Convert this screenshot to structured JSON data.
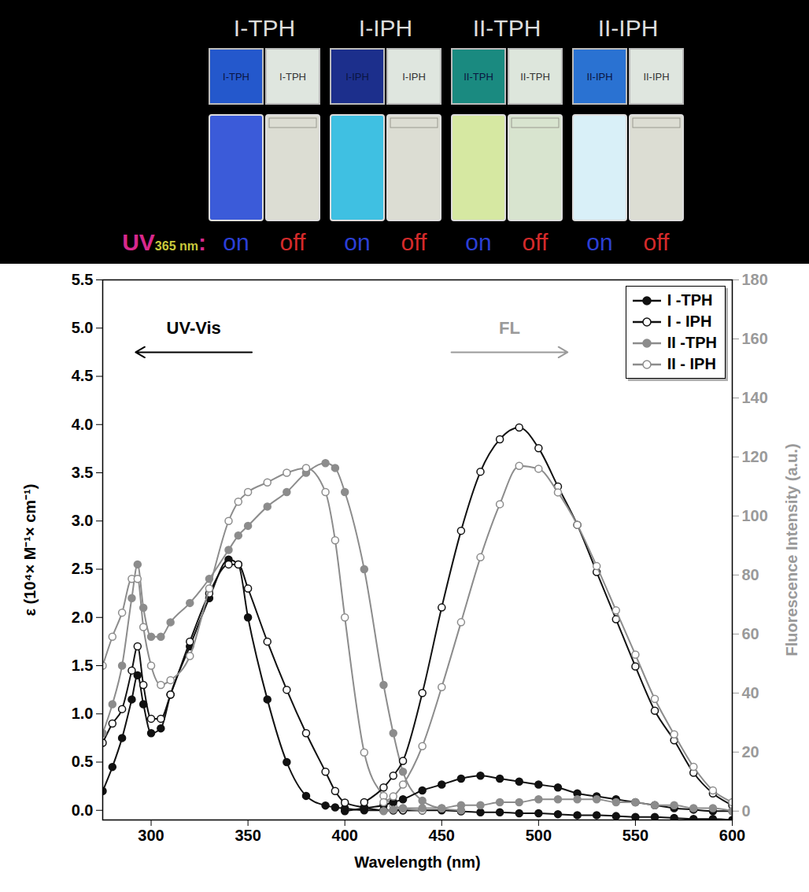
{
  "photo_panel": {
    "headers": [
      "I-TPH",
      "I-IPH",
      "II-TPH",
      "II-IPH"
    ],
    "header_color": "#dddddd",
    "film_labels": [
      "I-TPH",
      "I-TPH",
      "I-IPH",
      "I-IPH",
      "II-TPH",
      "II-TPH",
      "II-IPH",
      "II-IPH"
    ],
    "film_colors": [
      "#2458cc",
      "#dfe6df",
      "#1c2f8c",
      "#dfe6df",
      "#1a8a80",
      "#dde6dc",
      "#2a72d2",
      "#dfe6df"
    ],
    "vial_colors": [
      "#3b5bd9",
      "#dcddd3",
      "#3fc0e2",
      "#dcddd3",
      "#d6e8a2",
      "#d8e4cf",
      "#d9f0f8",
      "#dcddd3"
    ],
    "uv_label": "UV",
    "uv_subscript": "365 nm",
    "uv_colon": ":",
    "uv_color": "#d8288c",
    "subscript_color": "#c9c93c",
    "states": [
      {
        "text": "on",
        "color": "#2b3fd6"
      },
      {
        "text": "off",
        "color": "#d42a2a"
      }
    ]
  },
  "chart_data": {
    "type": "line",
    "x_label": "Wavelength (nm)",
    "y_label": "ε (10⁴× M⁻¹× cm⁻¹)",
    "y2_label": "Fluorescence Intensity (a.u.)",
    "x": [
      275,
      280,
      285,
      290,
      293,
      296,
      300,
      305,
      310,
      320,
      330,
      340,
      345,
      350,
      360,
      370,
      380,
      390,
      395,
      400,
      410,
      420,
      425,
      430,
      440,
      450,
      460,
      470,
      480,
      490,
      500,
      510,
      520,
      530,
      540,
      550,
      560,
      570,
      580,
      590,
      600
    ],
    "xlim": [
      275,
      600
    ],
    "xticks": [
      300,
      350,
      400,
      450,
      500,
      550,
      600
    ],
    "ylim": [
      -0.1,
      5.5
    ],
    "yticks": [
      {
        "value": 0,
        "label": "0.0"
      },
      0.5,
      {
        "value": 1,
        "label": "1.0"
      },
      1.5,
      {
        "value": 2,
        "label": "2.0"
      },
      2.5,
      {
        "value": 3,
        "label": "3.0"
      },
      3.5,
      {
        "value": 4,
        "label": "4.0"
      },
      4.5,
      {
        "value": 5,
        "label": "5.0"
      },
      5.5
    ],
    "y2lim": [
      -3,
      180
    ],
    "y2ticks": [
      0,
      20,
      40,
      60,
      80,
      100,
      120,
      140,
      160,
      180
    ],
    "y2_color": "#9a9a9a",
    "legend": "top-right",
    "annotations": [
      {
        "text": "UV-Vis",
        "x": 322,
        "y": 5.0,
        "arrow": "left",
        "color": "#000000"
      },
      {
        "text": "FL",
        "x": 485,
        "y": 5.0,
        "arrow": "right",
        "color": "#9a9a9a"
      }
    ],
    "series": [
      {
        "name": "I -TPH",
        "color": "#111111",
        "marker": "filled",
        "axis": "y",
        "values": [
          0.2,
          0.45,
          0.75,
          1.15,
          1.4,
          1.1,
          0.8,
          0.85,
          1.2,
          1.7,
          2.2,
          2.6,
          2.55,
          2.0,
          1.15,
          0.5,
          0.15,
          0.05,
          0.03,
          0.02,
          0.0,
          0.0,
          0.0,
          0.0,
          0.0,
          0.0,
          -0.01,
          -0.02,
          -0.02,
          -0.03,
          -0.03,
          -0.04,
          -0.05,
          -0.05,
          -0.06,
          -0.07,
          -0.07,
          -0.08,
          -0.09,
          -0.09,
          -0.1
        ]
      },
      {
        "name": "I - IPH",
        "color": "#111111",
        "marker": "open",
        "axis": "y",
        "values": [
          0.7,
          0.9,
          1.05,
          1.45,
          1.7,
          1.3,
          0.95,
          0.95,
          1.2,
          1.75,
          2.25,
          2.55,
          2.55,
          2.3,
          1.75,
          1.25,
          0.8,
          0.4,
          0.2,
          0.08,
          0.03,
          0.0,
          0.0,
          0.0,
          0.0,
          null,
          null,
          null,
          null,
          null,
          null,
          null,
          null,
          null,
          null,
          null,
          null,
          null,
          null,
          null,
          null
        ]
      },
      {
        "name": "II -TPH",
        "color": "#8c8c8c",
        "marker": "filled",
        "axis": "y",
        "values": [
          0.8,
          1.1,
          1.5,
          2.2,
          2.55,
          2.1,
          1.8,
          1.8,
          1.95,
          2.15,
          2.4,
          2.7,
          2.85,
          2.95,
          3.15,
          3.3,
          3.5,
          3.6,
          3.55,
          3.3,
          2.5,
          1.3,
          0.8,
          0.4,
          0.1,
          0.02,
          0.0,
          null,
          null,
          null,
          null,
          null,
          null,
          null,
          null,
          null,
          null,
          null,
          null,
          null,
          null
        ]
      },
      {
        "name": "II - IPH",
        "color": "#8c8c8c",
        "marker": "open",
        "axis": "y",
        "values": [
          1.5,
          1.8,
          2.05,
          2.4,
          2.4,
          1.9,
          1.5,
          1.3,
          1.35,
          1.6,
          2.3,
          3.0,
          3.2,
          3.3,
          3.4,
          3.5,
          3.55,
          3.3,
          2.8,
          2.0,
          0.6,
          0.15,
          0.05,
          0.02,
          0.0,
          null,
          null,
          null,
          null,
          null,
          null,
          null,
          null,
          null,
          null,
          null,
          null,
          null,
          null,
          null,
          null
        ]
      },
      {
        "name": "I -TPH",
        "color": "#111111",
        "marker": "filled",
        "axis": "y2",
        "values": [
          null,
          null,
          null,
          null,
          null,
          null,
          null,
          null,
          null,
          null,
          null,
          null,
          null,
          null,
          null,
          null,
          null,
          null,
          null,
          0,
          1,
          2,
          3,
          4,
          7,
          9,
          11,
          12,
          11,
          10,
          9,
          8,
          6,
          5,
          4,
          3,
          2,
          1,
          0.5,
          0,
          0
        ]
      },
      {
        "name": "I - IPH",
        "color": "#111111",
        "marker": "open",
        "axis": "y2",
        "values": [
          null,
          null,
          null,
          null,
          null,
          null,
          null,
          null,
          null,
          null,
          null,
          null,
          null,
          null,
          null,
          null,
          null,
          null,
          null,
          null,
          3,
          8,
          12,
          17,
          40,
          69,
          95,
          115,
          126,
          130,
          123,
          110,
          97,
          81,
          65,
          49,
          34,
          24,
          13,
          6,
          2
        ]
      },
      {
        "name": "II -TPH",
        "color": "#8c8c8c",
        "marker": "filled",
        "axis": "y2",
        "values": [
          null,
          null,
          null,
          null,
          null,
          null,
          null,
          null,
          null,
          null,
          null,
          null,
          null,
          null,
          null,
          null,
          null,
          null,
          null,
          null,
          null,
          0,
          0.5,
          1,
          1,
          1,
          2,
          2,
          3,
          3,
          4,
          4,
          4,
          4,
          3,
          3,
          2,
          2,
          1,
          1,
          0
        ]
      },
      {
        "name": "II - IPH",
        "color": "#8c8c8c",
        "marker": "open",
        "axis": "y2",
        "values": [
          null,
          null,
          null,
          null,
          null,
          null,
          null,
          null,
          null,
          null,
          null,
          null,
          null,
          null,
          null,
          null,
          null,
          null,
          null,
          null,
          null,
          3,
          5,
          9,
          22,
          42,
          64,
          86,
          104,
          117,
          116,
          108,
          97,
          83,
          68,
          53,
          38,
          26,
          15,
          7,
          3
        ]
      }
    ]
  }
}
